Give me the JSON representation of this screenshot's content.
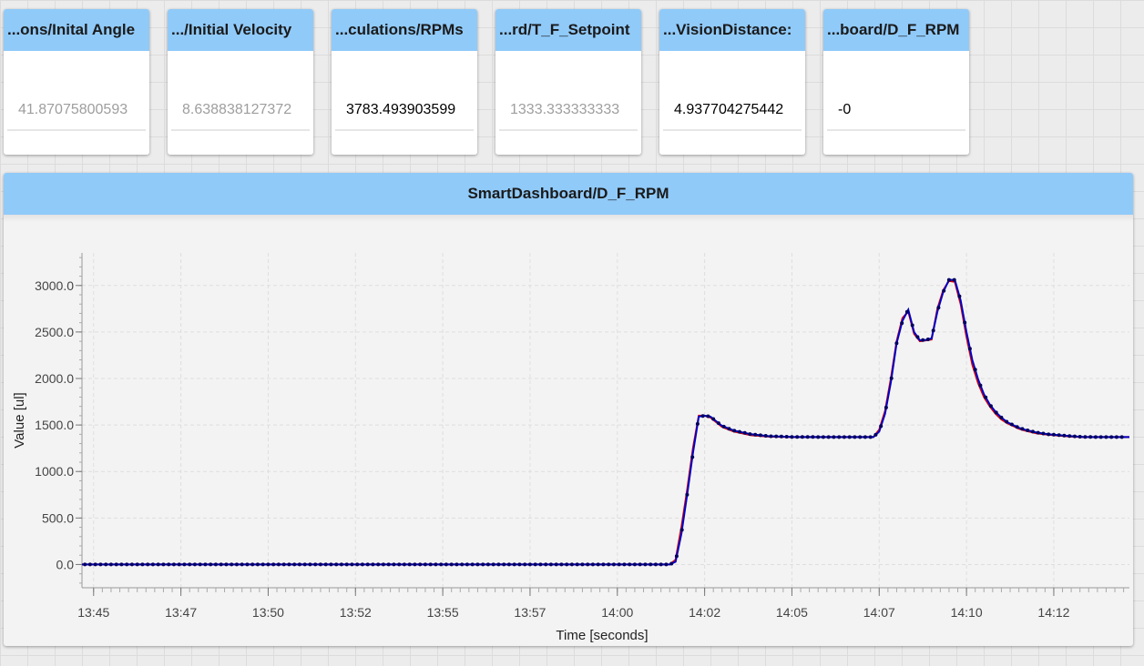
{
  "tiles": [
    {
      "title": "...ons/Inital Angle",
      "value": "41.87075800593",
      "muted": true
    },
    {
      "title": ".../Initial Velocity",
      "value": "8.638838127372",
      "muted": true
    },
    {
      "title": "...culations/RPMs",
      "value": "3783.493903599",
      "muted": false
    },
    {
      "title": "...rd/T_F_Setpoint",
      "value": "1333.333333333",
      "muted": true
    },
    {
      "title": "...VisionDistance:",
      "value": "4.937704275442",
      "muted": false
    },
    {
      "title": "...board/D_F_RPM",
      "value": "-0",
      "muted": false
    }
  ],
  "graph": {
    "title": "SmartDashboard/D_F_RPM"
  },
  "chart_data": {
    "type": "line",
    "title": "SmartDashboard/D_F_RPM",
    "xlabel": "Time [seconds]",
    "ylabel": "Value [ul]",
    "x_tick_labels": [
      "13:45",
      "13:47",
      "13:50",
      "13:52",
      "13:55",
      "13:57",
      "14:00",
      "14:02",
      "14:05",
      "14:07",
      "14:10",
      "14:12"
    ],
    "x_tick_seconds": [
      0,
      150,
      300,
      450,
      600,
      750,
      900,
      1050,
      1200,
      1350,
      1500,
      1650
    ],
    "x_unit": "minutes:seconds",
    "xlim_seconds": [
      -20,
      1780
    ],
    "y_ticks": [
      "0.0",
      "500.0",
      "1000.0",
      "1500.0",
      "2000.0",
      "2500.0",
      "3000.0"
    ],
    "ylim": [
      -250,
      3350
    ],
    "grid": true,
    "series": [
      {
        "color": "#d50000",
        "x": [
          -20,
          990,
          1000,
          1010,
          1020,
          1030,
          1040,
          1050,
          1060,
          1080,
          1100,
          1130,
          1160,
          1200,
          1250,
          1300,
          1340,
          1350,
          1360,
          1370,
          1380,
          1390,
          1400,
          1410,
          1420,
          1430,
          1440,
          1450,
          1460,
          1470,
          1480,
          1490,
          1500,
          1510,
          1520,
          1530,
          1540,
          1550,
          1560,
          1570,
          1580,
          1590,
          1600,
          1620,
          1640,
          1660,
          1680,
          1700,
          1720,
          1750,
          1780
        ],
        "y": [
          0,
          0,
          50,
          400,
          800,
          1250,
          1600,
          1600,
          1580,
          1480,
          1430,
          1390,
          1375,
          1370,
          1370,
          1370,
          1370,
          1450,
          1650,
          2000,
          2400,
          2650,
          2720,
          2480,
          2400,
          2410,
          2420,
          2750,
          2950,
          3050,
          3040,
          2800,
          2450,
          2150,
          1950,
          1800,
          1700,
          1620,
          1560,
          1520,
          1490,
          1460,
          1440,
          1410,
          1395,
          1385,
          1375,
          1370,
          1370,
          1370,
          1370
        ]
      },
      {
        "color": "#0000c8",
        "x": [
          -20,
          990,
          1000,
          1010,
          1020,
          1030,
          1040,
          1050,
          1060,
          1080,
          1100,
          1130,
          1160,
          1200,
          1250,
          1300,
          1340,
          1350,
          1360,
          1370,
          1380,
          1390,
          1400,
          1410,
          1420,
          1430,
          1440,
          1450,
          1460,
          1470,
          1480,
          1490,
          1500,
          1510,
          1520,
          1530,
          1540,
          1550,
          1560,
          1570,
          1580,
          1590,
          1600,
          1620,
          1640,
          1660,
          1680,
          1700,
          1720,
          1750,
          1780
        ],
        "y": [
          0,
          0,
          30,
          330,
          750,
          1200,
          1590,
          1600,
          1590,
          1490,
          1440,
          1400,
          1380,
          1372,
          1370,
          1370,
          1370,
          1430,
          1620,
          1960,
          2380,
          2620,
          2740,
          2500,
          2410,
          2415,
          2430,
          2720,
          2930,
          3060,
          3060,
          2840,
          2500,
          2200,
          1990,
          1830,
          1720,
          1640,
          1580,
          1530,
          1500,
          1470,
          1450,
          1420,
          1400,
          1390,
          1380,
          1372,
          1370,
          1370,
          1370
        ]
      }
    ]
  }
}
